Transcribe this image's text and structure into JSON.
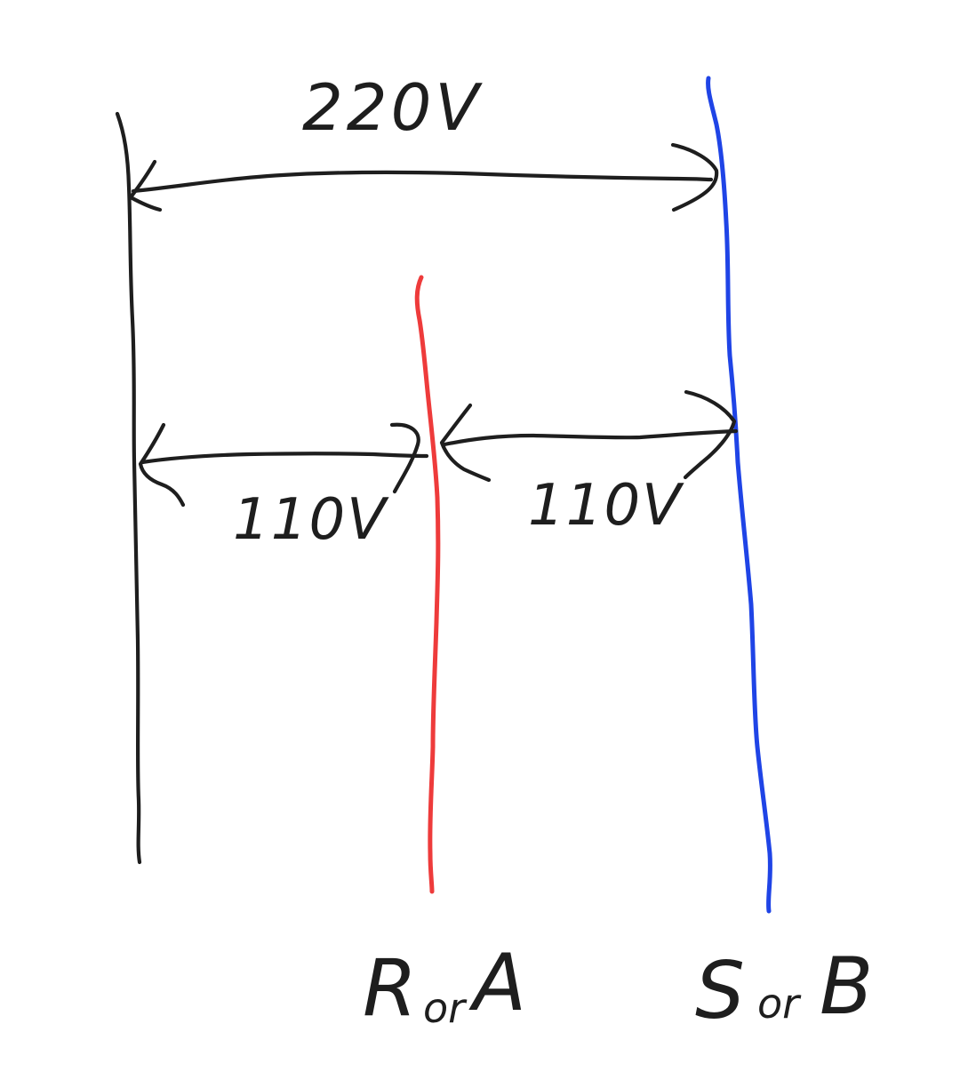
{
  "diagram": {
    "top_voltage": "220V",
    "left_voltage": "110V",
    "right_voltage": "110V",
    "phase_a": {
      "primary": "R",
      "joiner": "or",
      "alternate": "A",
      "color": "#ee3b3b"
    },
    "phase_b": {
      "primary": "S",
      "joiner": "or",
      "alternate": "B",
      "color": "#1f44e6"
    },
    "neutral_color": "#1e1e1e"
  }
}
